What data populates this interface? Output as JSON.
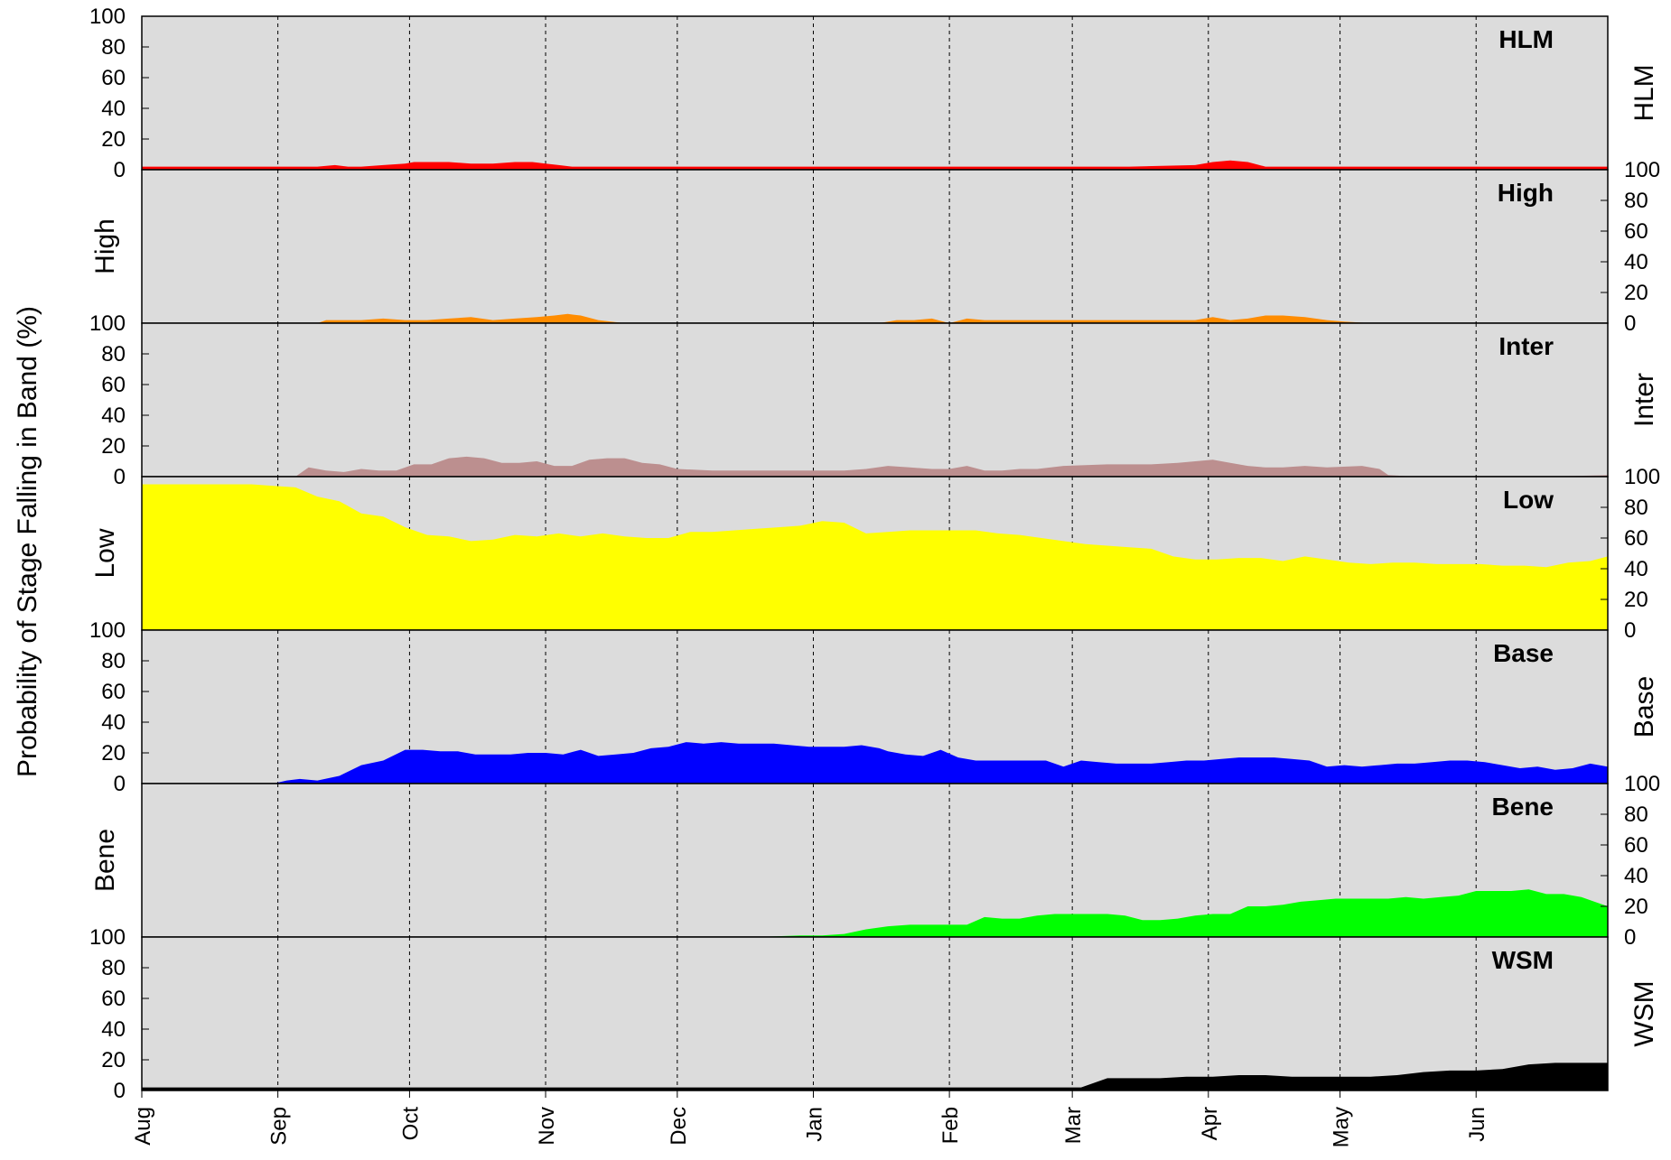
{
  "chart_data": {
    "type": "area",
    "ylabel": "Probability of Stage Falling in Band (%)",
    "ylim": [
      0,
      100
    ],
    "yticks": [
      0,
      20,
      40,
      60,
      80,
      100
    ],
    "grid": {
      "vertical_dashed": true,
      "horizontal": false
    },
    "x_range": [
      0,
      334
    ],
    "month_labels": [
      "Aug",
      "Sep",
      "Oct",
      "Nov",
      "Dec",
      "Jan",
      "Feb",
      "Mar",
      "Apr",
      "May",
      "Jun"
    ],
    "month_positions": [
      0,
      31,
      61,
      92,
      122,
      153,
      184,
      212,
      243,
      273,
      304
    ],
    "panels": [
      {
        "band": "HLM",
        "title": "HLM",
        "side_label": "HLM",
        "color": "#ff0000",
        "x": [
          0,
          20,
          40,
          44,
          47,
          50,
          55,
          60,
          62,
          70,
          75,
          80,
          85,
          89,
          92,
          95,
          98,
          110,
          150,
          180,
          200,
          225,
          240,
          244,
          248,
          252,
          256,
          260,
          300,
          334
        ],
        "y": [
          2,
          2,
          2,
          3,
          2,
          2,
          3,
          4,
          5,
          5,
          4,
          4,
          5,
          5,
          4,
          3,
          2,
          2,
          2,
          2,
          2,
          2,
          3,
          5,
          6,
          5,
          2,
          2,
          2,
          2
        ]
      },
      {
        "band": "High",
        "title": "High",
        "side_label": "High",
        "color": "#ff8c00",
        "x": [
          0,
          40,
          42,
          45,
          50,
          55,
          60,
          65,
          70,
          75,
          80,
          85,
          90,
          94,
          97,
          100,
          104,
          110,
          130,
          168,
          172,
          176,
          180,
          184,
          188,
          192,
          200,
          215,
          230,
          240,
          244,
          248,
          252,
          256,
          260,
          265,
          270,
          274,
          280,
          334
        ],
        "y": [
          0,
          0,
          2,
          2,
          2,
          3,
          2,
          2,
          3,
          4,
          2,
          3,
          4,
          5,
          6,
          5,
          2,
          0,
          0,
          0,
          2,
          2,
          3,
          0,
          3,
          2,
          2,
          2,
          2,
          2,
          4,
          2,
          3,
          5,
          5,
          4,
          2,
          1,
          0,
          0
        ]
      },
      {
        "band": "Inter",
        "title": "Inter",
        "side_label": "Inter",
        "color": "#bc8f8f",
        "x": [
          0,
          35,
          38,
          42,
          46,
          50,
          54,
          58,
          62,
          66,
          70,
          74,
          78,
          82,
          86,
          90,
          94,
          98,
          102,
          106,
          110,
          114,
          118,
          122,
          130,
          140,
          150,
          160,
          165,
          170,
          175,
          180,
          184,
          188,
          192,
          196,
          200,
          204,
          210,
          220,
          230,
          236,
          240,
          244,
          248,
          252,
          256,
          260,
          265,
          270,
          278,
          282,
          284,
          290,
          320,
          334
        ],
        "y": [
          0,
          0,
          6,
          4,
          3,
          5,
          4,
          4,
          8,
          8,
          12,
          13,
          12,
          9,
          9,
          10,
          7,
          7,
          11,
          12,
          12,
          9,
          8,
          5,
          4,
          4,
          4,
          4,
          5,
          7,
          6,
          5,
          5,
          7,
          4,
          4,
          5,
          5,
          7,
          8,
          8,
          9,
          10,
          11,
          9,
          7,
          6,
          6,
          7,
          6,
          7,
          5,
          1,
          0,
          0,
          1
        ]
      },
      {
        "band": "Low",
        "title": "Low",
        "side_label": "Low",
        "color": "#ffff00",
        "x": [
          0,
          25,
          30,
          35,
          40,
          45,
          50,
          55,
          60,
          65,
          70,
          75,
          80,
          85,
          90,
          95,
          100,
          105,
          110,
          115,
          120,
          125,
          130,
          135,
          140,
          145,
          150,
          155,
          160,
          165,
          170,
          175,
          180,
          185,
          190,
          195,
          200,
          205,
          210,
          215,
          220,
          225,
          230,
          235,
          240,
          245,
          250,
          255,
          260,
          265,
          270,
          275,
          280,
          285,
          290,
          295,
          300,
          305,
          310,
          315,
          320,
          325,
          330,
          334
        ],
        "y": [
          95,
          95,
          94,
          93,
          87,
          84,
          76,
          74,
          67,
          62,
          61,
          58,
          59,
          62,
          61,
          63,
          61,
          63,
          61,
          60,
          60,
          64,
          64,
          65,
          66,
          67,
          68,
          71,
          70,
          63,
          64,
          65,
          65,
          65,
          65,
          63,
          62,
          60,
          58,
          56,
          55,
          54,
          53,
          48,
          46,
          46,
          47,
          47,
          45,
          48,
          46,
          44,
          43,
          44,
          44,
          43,
          43,
          43,
          42,
          42,
          41,
          44,
          45,
          48
        ]
      },
      {
        "band": "Base",
        "title": "Base",
        "side_label": "Base",
        "color": "#0000ff",
        "x": [
          0,
          30,
          33,
          36,
          40,
          45,
          50,
          55,
          60,
          64,
          68,
          72,
          76,
          80,
          84,
          88,
          92,
          96,
          100,
          104,
          108,
          112,
          116,
          120,
          124,
          128,
          132,
          136,
          140,
          144,
          148,
          152,
          156,
          160,
          164,
          168,
          170,
          174,
          178,
          182,
          186,
          190,
          194,
          198,
          202,
          206,
          210,
          214,
          218,
          222,
          226,
          230,
          234,
          238,
          242,
          246,
          250,
          254,
          258,
          262,
          266,
          270,
          274,
          278,
          282,
          286,
          290,
          294,
          298,
          302,
          306,
          310,
          314,
          318,
          322,
          326,
          330,
          334
        ],
        "y": [
          0,
          0,
          2,
          3,
          2,
          5,
          12,
          15,
          22,
          22,
          21,
          21,
          19,
          19,
          19,
          20,
          20,
          19,
          22,
          18,
          19,
          20,
          23,
          24,
          27,
          26,
          27,
          26,
          26,
          26,
          25,
          24,
          24,
          24,
          25,
          23,
          21,
          19,
          18,
          22,
          17,
          15,
          15,
          15,
          15,
          15,
          11,
          15,
          14,
          13,
          13,
          13,
          14,
          15,
          15,
          16,
          17,
          17,
          17,
          16,
          15,
          11,
          12,
          11,
          12,
          13,
          13,
          14,
          15,
          15,
          14,
          12,
          10,
          11,
          9,
          10,
          13,
          11
        ]
      },
      {
        "band": "Bene",
        "title": "Bene",
        "side_label": "Bene",
        "color": "#00ff00",
        "x": [
          0,
          140,
          150,
          155,
          160,
          165,
          170,
          175,
          180,
          184,
          188,
          192,
          196,
          200,
          204,
          208,
          212,
          216,
          220,
          224,
          228,
          232,
          236,
          240,
          244,
          248,
          252,
          256,
          260,
          264,
          268,
          272,
          276,
          280,
          284,
          288,
          292,
          296,
          300,
          304,
          308,
          312,
          316,
          320,
          324,
          328,
          332,
          334
        ],
        "y": [
          0,
          0,
          1,
          1,
          2,
          5,
          7,
          8,
          8,
          8,
          8,
          13,
          12,
          12,
          14,
          15,
          15,
          15,
          15,
          14,
          11,
          11,
          12,
          14,
          15,
          15,
          20,
          20,
          21,
          23,
          24,
          25,
          25,
          25,
          25,
          26,
          25,
          26,
          27,
          30,
          30,
          30,
          31,
          28,
          28,
          26,
          22,
          20
        ]
      },
      {
        "band": "WSM",
        "title": "WSM",
        "side_label": "WSM",
        "color": "#000000",
        "x": [
          0,
          200,
          208,
          214,
          220,
          226,
          232,
          238,
          244,
          250,
          256,
          262,
          268,
          274,
          280,
          286,
          292,
          298,
          304,
          310,
          316,
          322,
          328,
          334
        ],
        "y": [
          2,
          2,
          2,
          2,
          8,
          8,
          8,
          9,
          9,
          10,
          10,
          9,
          9,
          9,
          9,
          10,
          12,
          13,
          13,
          14,
          17,
          18,
          18,
          18
        ]
      }
    ]
  }
}
